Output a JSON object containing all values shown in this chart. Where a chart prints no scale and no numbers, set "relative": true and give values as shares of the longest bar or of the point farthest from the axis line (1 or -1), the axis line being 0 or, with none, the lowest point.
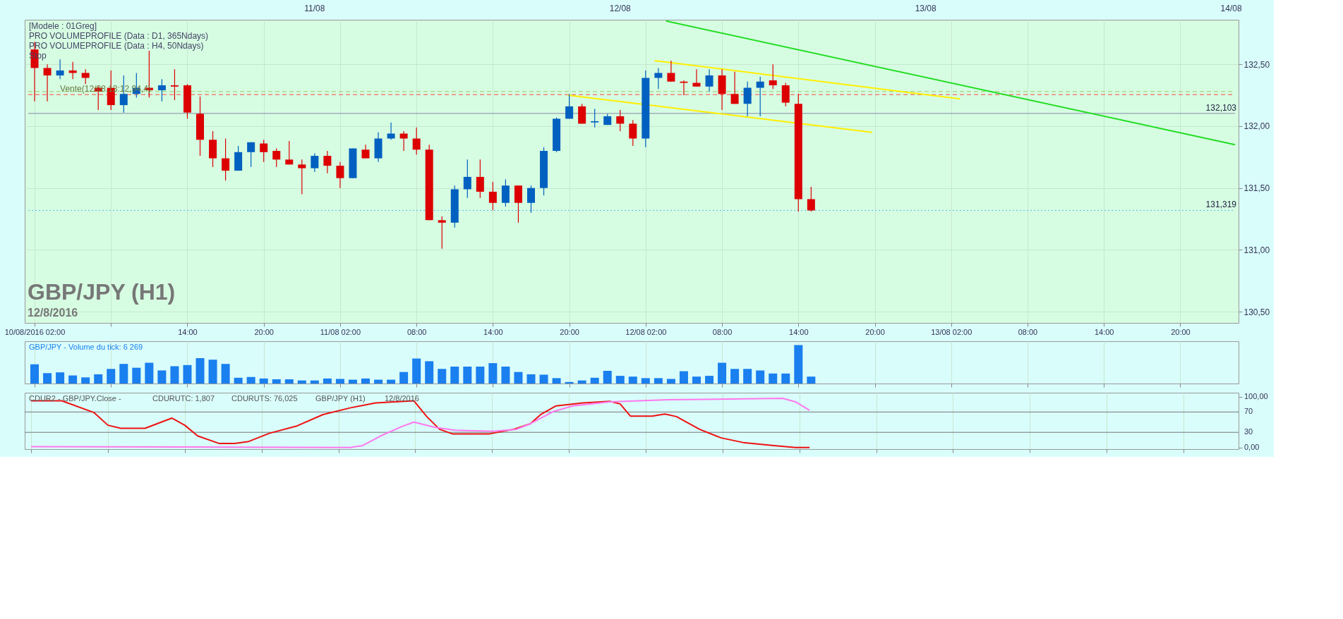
{
  "chart_data": [
    {
      "type": "candlestick",
      "title": "GBP/JPY (H1)",
      "subtitle": "12/8/2016",
      "annotations": [
        "[Modele : 01Greg]",
        "PRO VOLUMEPROFILE (Data : D1, 365Ndays)",
        "PRO VOLUMEPROFILE (Data : H4, 50Ndays)",
        "Stop",
        {
          "text": "Vente(12/08 13:12,94,4)",
          "x": "2016-08-10T04:00",
          "y": 132.3
        }
      ],
      "x": [
        "2016-08-10T02:00",
        "2016-08-10T03:00",
        "2016-08-10T04:00",
        "2016-08-10T05:00",
        "2016-08-10T06:00",
        "2016-08-10T07:00",
        "2016-08-10T08:00",
        "2016-08-10T09:00",
        "2016-08-10T10:00",
        "2016-08-10T11:00",
        "2016-08-10T12:00",
        "2016-08-10T13:00",
        "2016-08-10T14:00",
        "2016-08-10T15:00",
        "2016-08-10T16:00",
        "2016-08-10T17:00",
        "2016-08-10T18:00",
        "2016-08-10T19:00",
        "2016-08-10T20:00",
        "2016-08-10T21:00",
        "2016-08-10T22:00",
        "2016-08-10T23:00",
        "2016-08-11T00:00",
        "2016-08-11T01:00",
        "2016-08-11T02:00",
        "2016-08-11T03:00",
        "2016-08-11T04:00",
        "2016-08-11T05:00",
        "2016-08-11T06:00",
        "2016-08-11T07:00",
        "2016-08-11T08:00",
        "2016-08-11T09:00",
        "2016-08-11T10:00",
        "2016-08-11T11:00",
        "2016-08-11T12:00",
        "2016-08-11T13:00",
        "2016-08-11T14:00",
        "2016-08-11T15:00",
        "2016-08-11T16:00",
        "2016-08-11T17:00",
        "2016-08-11T18:00",
        "2016-08-11T19:00",
        "2016-08-11T20:00",
        "2016-08-11T21:00",
        "2016-08-11T22:00",
        "2016-08-11T23:00",
        "2016-08-12T00:00",
        "2016-08-12T01:00",
        "2016-08-12T02:00",
        "2016-08-12T03:00",
        "2016-08-12T04:00",
        "2016-08-12T05:00",
        "2016-08-12T06:00",
        "2016-08-12T07:00",
        "2016-08-12T08:00",
        "2016-08-12T09:00",
        "2016-08-12T10:00",
        "2016-08-12T11:00",
        "2016-08-12T12:00",
        "2016-08-12T13:00",
        "2016-08-12T14:00",
        "2016-08-12T15:00"
      ],
      "ohlc": [
        [
          132.62,
          132.68,
          132.2,
          132.47
        ],
        [
          132.47,
          132.5,
          132.2,
          132.41
        ],
        [
          132.41,
          132.54,
          132.38,
          132.45
        ],
        [
          132.45,
          132.52,
          132.38,
          132.43
        ],
        [
          132.43,
          132.46,
          132.34,
          132.39
        ],
        [
          132.31,
          132.32,
          132.13,
          132.28
        ],
        [
          132.31,
          132.45,
          132.13,
          132.17
        ],
        [
          132.17,
          132.41,
          132.11,
          132.26
        ],
        [
          132.26,
          132.43,
          132.23,
          132.31
        ],
        [
          132.31,
          132.61,
          132.23,
          132.29
        ],
        [
          132.29,
          132.38,
          132.2,
          132.33
        ],
        [
          132.33,
          132.46,
          132.21,
          132.32
        ],
        [
          132.33,
          132.34,
          132.06,
          132.11
        ],
        [
          132.1,
          132.24,
          131.76,
          131.89
        ],
        [
          131.89,
          131.96,
          131.67,
          131.74
        ],
        [
          131.74,
          131.9,
          131.56,
          131.64
        ],
        [
          131.64,
          131.84,
          131.64,
          131.79
        ],
        [
          131.79,
          131.87,
          131.67,
          131.87
        ],
        [
          131.86,
          131.89,
          131.71,
          131.79
        ],
        [
          131.8,
          131.82,
          131.67,
          131.73
        ],
        [
          131.73,
          131.88,
          131.69,
          131.69
        ],
        [
          131.69,
          131.73,
          131.45,
          131.66
        ],
        [
          131.66,
          131.78,
          131.63,
          131.76
        ],
        [
          131.76,
          131.8,
          131.62,
          131.68
        ],
        [
          131.68,
          131.71,
          131.5,
          131.58
        ],
        [
          131.58,
          131.82,
          131.58,
          131.82
        ],
        [
          131.81,
          131.85,
          131.74,
          131.74
        ],
        [
          131.74,
          131.95,
          131.71,
          131.9
        ],
        [
          131.9,
          132.03,
          131.89,
          131.94
        ],
        [
          131.94,
          131.96,
          131.8,
          131.9
        ],
        [
          131.9,
          131.99,
          131.77,
          131.81
        ],
        [
          131.81,
          131.85,
          131.24,
          131.24
        ],
        [
          131.24,
          131.27,
          131.01,
          131.22
        ],
        [
          131.22,
          131.52,
          131.18,
          131.49
        ],
        [
          131.49,
          131.73,
          131.42,
          131.59
        ],
        [
          131.59,
          131.73,
          131.42,
          131.47
        ],
        [
          131.47,
          131.55,
          131.32,
          131.38
        ],
        [
          131.38,
          131.57,
          131.35,
          131.52
        ],
        [
          131.52,
          131.52,
          131.22,
          131.38
        ],
        [
          131.38,
          131.52,
          131.3,
          131.5
        ],
        [
          131.5,
          131.83,
          131.44,
          131.8
        ],
        [
          131.8,
          132.07,
          131.79,
          132.06
        ],
        [
          132.06,
          132.26,
          132.06,
          132.16
        ],
        [
          132.16,
          132.18,
          132.02,
          132.02
        ],
        [
          132.03,
          132.14,
          131.99,
          132.04
        ],
        [
          132.01,
          132.1,
          132.01,
          132.08
        ],
        [
          132.08,
          132.13,
          131.96,
          132.02
        ],
        [
          132.02,
          132.05,
          131.84,
          131.9
        ],
        [
          131.9,
          132.45,
          131.83,
          132.39
        ],
        [
          132.39,
          132.47,
          132.3,
          132.43
        ],
        [
          132.43,
          132.53,
          132.36,
          132.36
        ],
        [
          132.36,
          132.37,
          132.25,
          132.35
        ],
        [
          132.35,
          132.46,
          132.32,
          132.32
        ],
        [
          132.32,
          132.46,
          132.28,
          132.41
        ],
        [
          132.41,
          132.46,
          132.13,
          132.26
        ],
        [
          132.26,
          132.44,
          132.18,
          132.18
        ],
        [
          132.18,
          132.36,
          132.08,
          132.31
        ],
        [
          132.31,
          132.4,
          132.08,
          132.36
        ],
        [
          132.37,
          132.5,
          132.3,
          132.33
        ],
        [
          132.33,
          132.35,
          132.16,
          132.19
        ],
        [
          132.18,
          132.26,
          131.31,
          131.41
        ],
        [
          131.41,
          131.51,
          131.31,
          131.319
        ]
      ],
      "colors": [
        "#dd0000",
        "#dd0000",
        "#0060c0",
        "#dd0000",
        "#dd0000",
        "#dd0000",
        "#dd0000",
        "#0060c0",
        "#0060c0",
        "#dd0000",
        "#0060c0",
        "#dd0000",
        "#dd0000",
        "#dd0000",
        "#dd0000",
        "#dd0000",
        "#0060c0",
        "#0060c0",
        "#dd0000",
        "#dd0000",
        "#dd0000",
        "#dd0000",
        "#0060c0",
        "#dd0000",
        "#dd0000",
        "#0060c0",
        "#dd0000",
        "#0060c0",
        "#0060c0",
        "#dd0000",
        "#dd0000",
        "#dd0000",
        "#dd0000",
        "#0060c0",
        "#0060c0",
        "#dd0000",
        "#dd0000",
        "#0060c0",
        "#dd0000",
        "#0060c0",
        "#0060c0",
        "#0060c0",
        "#0060c0",
        "#dd0000",
        "#0060c0",
        "#0060c0",
        "#dd0000",
        "#dd0000",
        "#0060c0",
        "#0060c0",
        "#dd0000",
        "#dd0000",
        "#dd0000",
        "#0060c0",
        "#dd0000",
        "#dd0000",
        "#0060c0",
        "#0060c0",
        "#dd0000",
        "#dd0000",
        "#dd0000",
        "#dd0000"
      ],
      "series": [
        {
          "type": "line",
          "color": "#ffee00",
          "x": [
            "2016-08-11T19:54",
            "2016-08-12T19:48"
          ],
          "values": [
            132.25,
            131.95
          ]
        },
        {
          "type": "line",
          "color": "#ffee00",
          "x": [
            "2016-08-12T02:42",
            "2016-08-13T02:42"
          ],
          "values": [
            132.53,
            132.22
          ]
        },
        {
          "type": "line",
          "color": "#22dd22",
          "x": [
            "2016-08-12T03:36",
            "2016-08-14T00:18"
          ],
          "values": [
            132.85,
            131.85
          ]
        }
      ],
      "ref_lines": [
        {
          "axis": "y",
          "value": 132.103,
          "label": "132,103",
          "color": "#8888aa",
          "line_style": "solid"
        },
        {
          "axis": "y",
          "value": 131.319,
          "label": "131,319",
          "color": "#55bbee",
          "line_style": "dotted"
        },
        {
          "axis": "y",
          "value": 132.255,
          "color": "#ff4444",
          "line_style": "dashed"
        },
        {
          "axis": "y",
          "value": 132.28,
          "color": "#99cc66",
          "line_style": "dashed"
        }
      ],
      "xlim": [
        "2016-08-10T01:30",
        "2016-08-14T00:18"
      ],
      "xticks": [
        {
          "value": "2016-08-10T02:00",
          "label": "10/08/2016 02:00"
        },
        {
          "value": "2016-08-10T08:00",
          "label": null
        },
        {
          "value": "2016-08-10T14:00",
          "label": "14:00"
        },
        {
          "value": "2016-08-10T20:00",
          "label": "20:00"
        },
        {
          "value": "2016-08-11T02:00",
          "label": "11/08 02:00"
        },
        {
          "value": "2016-08-11T08:00",
          "label": "08:00"
        },
        {
          "value": "2016-08-11T14:00",
          "label": "14:00"
        },
        {
          "value": "2016-08-11T20:00",
          "label": "20:00"
        },
        {
          "value": "2016-08-12T02:00",
          "label": "12/08 02:00"
        },
        {
          "value": "2016-08-12T08:00",
          "label": "08:00"
        },
        {
          "value": "2016-08-12T14:00",
          "label": "14:00"
        },
        {
          "value": "2016-08-12T20:00",
          "label": "20:00"
        },
        {
          "value": "2016-08-13T02:00",
          "label": "13/08 02:00"
        },
        {
          "value": "2016-08-13T08:00",
          "label": "08:00"
        },
        {
          "value": "2016-08-13T14:00",
          "label": "14:00"
        },
        {
          "value": "2016-08-13T20:00",
          "label": "20:00"
        }
      ],
      "x2lim": [
        "2016-08-10T01:30",
        "2016-08-14T00:18"
      ],
      "x2ticks": [
        {
          "value": "2016-08-11",
          "label": "11/08"
        },
        {
          "value": "2016-08-12",
          "label": "12/08"
        },
        {
          "value": "2016-08-13",
          "label": "13/08"
        },
        {
          "value": "2016-08-14",
          "label": "14/08"
        }
      ],
      "ylim": [
        130.41,
        132.86
      ],
      "yticks": [
        {
          "value": 130.5,
          "label": "130,50"
        },
        {
          "value": 131,
          "label": "131,00"
        },
        {
          "value": 131.5,
          "label": "131,50"
        },
        {
          "value": 132,
          "label": "132,00"
        },
        {
          "value": 132.5,
          "label": "132,50"
        }
      ],
      "grid": true
    },
    {
      "type": "bar",
      "title": "GBP/JPY - Volume du tick: 6 269",
      "relative": true,
      "color": "#1a7fef",
      "x": [
        "2016-08-10T02:00",
        "2016-08-10T03:00",
        "2016-08-10T04:00",
        "2016-08-10T05:00",
        "2016-08-10T06:00",
        "2016-08-10T07:00",
        "2016-08-10T08:00",
        "2016-08-10T09:00",
        "2016-08-10T10:00",
        "2016-08-10T11:00",
        "2016-08-10T12:00",
        "2016-08-10T13:00",
        "2016-08-10T14:00",
        "2016-08-10T15:00",
        "2016-08-10T16:00",
        "2016-08-10T17:00",
        "2016-08-10T18:00",
        "2016-08-10T19:00",
        "2016-08-10T20:00",
        "2016-08-10T21:00",
        "2016-08-10T22:00",
        "2016-08-10T23:00",
        "2016-08-11T00:00",
        "2016-08-11T01:00",
        "2016-08-11T02:00",
        "2016-08-11T03:00",
        "2016-08-11T04:00",
        "2016-08-11T05:00",
        "2016-08-11T06:00",
        "2016-08-11T07:00",
        "2016-08-11T08:00",
        "2016-08-11T09:00",
        "2016-08-11T10:00",
        "2016-08-11T11:00",
        "2016-08-11T12:00",
        "2016-08-11T13:00",
        "2016-08-11T14:00",
        "2016-08-11T15:00",
        "2016-08-11T16:00",
        "2016-08-11T17:00",
        "2016-08-11T18:00",
        "2016-08-11T19:00",
        "2016-08-11T20:00",
        "2016-08-11T21:00",
        "2016-08-11T22:00",
        "2016-08-11T23:00",
        "2016-08-12T00:00",
        "2016-08-12T01:00",
        "2016-08-12T02:00",
        "2016-08-12T03:00",
        "2016-08-12T04:00",
        "2016-08-12T05:00",
        "2016-08-12T06:00",
        "2016-08-12T07:00",
        "2016-08-12T08:00",
        "2016-08-12T09:00",
        "2016-08-12T10:00",
        "2016-08-12T11:00",
        "2016-08-12T12:00",
        "2016-08-12T13:00",
        "2016-08-12T14:00",
        "2016-08-12T15:00"
      ],
      "values": [
        0.5,
        0.27,
        0.29,
        0.21,
        0.16,
        0.24,
        0.38,
        0.51,
        0.41,
        0.54,
        0.34,
        0.45,
        0.48,
        0.66,
        0.62,
        0.51,
        0.15,
        0.17,
        0.13,
        0.11,
        0.11,
        0.08,
        0.08,
        0.13,
        0.12,
        0.1,
        0.13,
        0.1,
        0.1,
        0.3,
        0.65,
        0.58,
        0.38,
        0.44,
        0.44,
        0.44,
        0.53,
        0.44,
        0.3,
        0.24,
        0.23,
        0.14,
        0.04,
        0.08,
        0.15,
        0.33,
        0.2,
        0.18,
        0.14,
        0.14,
        0.12,
        0.32,
        0.18,
        0.2,
        0.54,
        0.38,
        0.38,
        0.34,
        0.26,
        0.26,
        1,
        0.18
      ],
      "xlim": [
        "2016-08-10T01:30",
        "2016-08-14T00:18"
      ],
      "xticks": [
        {
          "value": "2016-08-10T02:00",
          "label": null
        },
        {
          "value": "2016-08-10T08:00",
          "label": null
        },
        {
          "value": "2016-08-10T14:00",
          "label": null
        },
        {
          "value": "2016-08-10T20:00",
          "label": null
        },
        {
          "value": "2016-08-11T02:00",
          "label": null
        },
        {
          "value": "2016-08-11T08:00",
          "label": null
        },
        {
          "value": "2016-08-11T14:00",
          "label": null
        },
        {
          "value": "2016-08-11T20:00",
          "label": null
        },
        {
          "value": "2016-08-12T02:00",
          "label": null
        },
        {
          "value": "2016-08-12T08:00",
          "label": null
        },
        {
          "value": "2016-08-12T14:00",
          "label": null
        },
        {
          "value": "2016-08-12T20:00",
          "label": null
        },
        {
          "value": "2016-08-13T02:00",
          "label": null
        },
        {
          "value": "2016-08-13T08:00",
          "label": null
        },
        {
          "value": "2016-08-13T14:00",
          "label": null
        },
        {
          "value": "2016-08-13T20:00",
          "label": null
        }
      ],
      "tick_labels": false,
      "grid": "x"
    },
    {
      "type": "line",
      "annotations": [
        "CDUR2 - GBP/JPY.Close -",
        "CDURUTC: 1,807",
        "CDURUTS: 76,025",
        "GBP/JPY (H1)",
        "12/8/2016"
      ],
      "series": [
        {
          "color": "#ee1111",
          "x": [
            "2016-08-10T02:00",
            "2016-08-10T04:24",
            "2016-08-10T06:54",
            "2016-08-10T08:00",
            "2016-08-10T09:00",
            "2016-08-10T10:54",
            "2016-08-10T13:00",
            "2016-08-10T14:00",
            "2016-08-10T15:00",
            "2016-08-10T16:42",
            "2016-08-10T17:54",
            "2016-08-10T19:00",
            "2016-08-10T20:36",
            "2016-08-10T22:42",
            "2016-08-11T00:48",
            "2016-08-11T02:54",
            "2016-08-11T04:54",
            "2016-08-11T07:54",
            "2016-08-11T08:54",
            "2016-08-11T09:54",
            "2016-08-11T10:54",
            "2016-08-11T13:48",
            "2016-08-11T15:42",
            "2016-08-11T17:00",
            "2016-08-11T17:48",
            "2016-08-11T19:00",
            "2016-08-11T21:06",
            "2016-08-11T23:12",
            "2016-08-12T00:00",
            "2016-08-12T00:48",
            "2016-08-12T02:30",
            "2016-08-12T03:30",
            "2016-08-12T04:24",
            "2016-08-12T06:12",
            "2016-08-12T07:54",
            "2016-08-12T09:36",
            "2016-08-12T12:00",
            "2016-08-12T13:42",
            "2016-08-12T14:48"
          ],
          "values": [
            92,
            92,
            69,
            44,
            38,
            38,
            58,
            44,
            23,
            8,
            8,
            12,
            28,
            42,
            65,
            78,
            88,
            92,
            61,
            36,
            27,
            27,
            36,
            47,
            65,
            82,
            88,
            91,
            86,
            62,
            62,
            66,
            61,
            36,
            19,
            10,
            4,
            0,
            0
          ]
        },
        {
          "color": "#ff77ee",
          "x": [
            "2016-08-10T02:00",
            "2016-08-11T02:54",
            "2016-08-11T03:54",
            "2016-08-11T05:18",
            "2016-08-11T07:00",
            "2016-08-11T07:54",
            "2016-08-11T09:30",
            "2016-08-11T11:06",
            "2016-08-11T14:06",
            "2016-08-11T15:54",
            "2016-08-11T17:00",
            "2016-08-11T18:48",
            "2016-08-11T20:18",
            "2016-08-11T23:12",
            "2016-08-12T03:42",
            "2016-08-12T12:42",
            "2016-08-12T13:42",
            "2016-08-12T14:48"
          ],
          "values": [
            2,
            0,
            4,
            23,
            42,
            50,
            40,
            34,
            32,
            36,
            47,
            71,
            82,
            90,
            94,
            97,
            90,
            73
          ]
        }
      ],
      "ref_lines": [
        {
          "axis": "y",
          "value": 30,
          "color": "#777777"
        },
        {
          "axis": "y",
          "value": 70,
          "color": "#777777"
        }
      ],
      "xlim": [
        "2016-08-10T01:30",
        "2016-08-14T00:18"
      ],
      "xticks": [
        {
          "value": "2016-08-10T02:00",
          "label": null
        },
        {
          "value": "2016-08-10T08:00",
          "label": null
        },
        {
          "value": "2016-08-10T14:00",
          "label": null
        },
        {
          "value": "2016-08-10T20:00",
          "label": null
        },
        {
          "value": "2016-08-11T02:00",
          "label": null
        },
        {
          "value": "2016-08-11T08:00",
          "label": null
        },
        {
          "value": "2016-08-11T14:00",
          "label": null
        },
        {
          "value": "2016-08-11T20:00",
          "label": null
        },
        {
          "value": "2016-08-12T02:00",
          "label": null
        },
        {
          "value": "2016-08-12T08:00",
          "label": null
        },
        {
          "value": "2016-08-12T14:00",
          "label": null
        },
        {
          "value": "2016-08-12T20:00",
          "label": null
        },
        {
          "value": "2016-08-13T02:00",
          "label": null
        },
        {
          "value": "2016-08-13T08:00",
          "label": null
        },
        {
          "value": "2016-08-13T14:00",
          "label": null
        },
        {
          "value": "2016-08-13T20:00",
          "label": null
        }
      ],
      "ylim": [
        -3,
        108
      ],
      "yticks": [
        {
          "value": 0,
          "label": "0,00"
        },
        {
          "value": 30,
          "label": "30"
        },
        {
          "value": 70,
          "label": "70"
        },
        {
          "value": 100,
          "label": "100,00"
        }
      ],
      "tick_labels": "y",
      "grid": "x"
    }
  ]
}
